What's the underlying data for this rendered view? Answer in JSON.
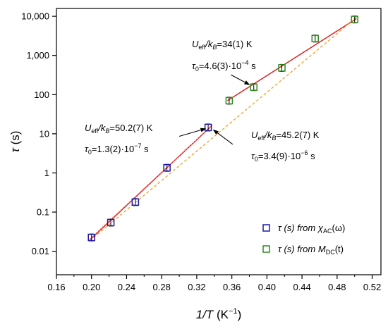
{
  "chart_data": {
    "type": "scatter",
    "title": "",
    "xlabel_main": "1/T",
    "xlabel_unit": " (K",
    "xlabel_sup": "−1",
    "xlabel_close": ")",
    "ylabel_main": "τ",
    "ylabel_unit": " (s)",
    "xlim": [
      0.16,
      0.53
    ],
    "ylim_log10": [
      -2.6,
      4.2
    ],
    "y_scale": "log",
    "x_ticks": [
      0.16,
      0.2,
      0.24,
      0.28,
      0.32,
      0.36,
      0.4,
      0.44,
      0.48,
      0.52
    ],
    "x_tick_labels": [
      "0.16",
      "0.20",
      "0.24",
      "0.28",
      "0.32",
      "0.36",
      "0.40",
      "0.44",
      "0.48",
      "0.52"
    ],
    "y_ticks": [
      0.01,
      0.1,
      1,
      10,
      100,
      1000,
      10000
    ],
    "y_tick_labels": [
      "0.01",
      "0.1",
      "1",
      "10",
      "100",
      "1,000",
      "10,000"
    ],
    "legend_position": "bottom-right",
    "series": [
      {
        "name_prefix": "τ (s) from ",
        "name_sym": "χ",
        "name_sub": "AC",
        "name_suffix": "(ω)",
        "color": "#1a1aa8",
        "points": [
          {
            "x": 0.2,
            "y": 0.0225
          },
          {
            "x": 0.222,
            "y": 0.054
          },
          {
            "x": 0.25,
            "y": 0.18
          },
          {
            "x": 0.286,
            "y": 1.35
          },
          {
            "x": 0.333,
            "y": 14.5
          }
        ]
      },
      {
        "name_prefix": "τ (s) from ",
        "name_sym": "M",
        "name_sub": "DC",
        "name_suffix": "(t)",
        "color": "#2e8b20",
        "points": [
          {
            "x": 0.357,
            "y": 70
          },
          {
            "x": 0.385,
            "y": 155
          },
          {
            "x": 0.417,
            "y": 480
          },
          {
            "x": 0.455,
            "y": 2700
          },
          {
            "x": 0.5,
            "y": 8300
          }
        ]
      }
    ],
    "fits": [
      {
        "style": "solid",
        "color": "#e02020",
        "x": [
          0.198,
          0.337
        ],
        "y": [
          0.0195,
          16
        ]
      },
      {
        "style": "solid",
        "color": "#e02020",
        "x": [
          0.355,
          0.502
        ],
        "y": [
          70,
          8700
        ]
      },
      {
        "style": "dash",
        "color": "#f0a020",
        "x": [
          0.198,
          0.503
        ],
        "y": [
          0.0185,
          9800
        ]
      },
      {
        "style": "dot",
        "color": "#f5a0a0",
        "x": [
          0.198,
          0.338
        ],
        "y": [
          0.021,
          17
        ]
      }
    ],
    "annotations": [
      {
        "id": "ann1",
        "u": "U",
        "u_sub": "eff",
        "k": "/k",
        "k_sub": "B",
        "u_val": "=50.2(7) K",
        "t": "τ",
        "t_sub": "0",
        "t_val": "=1.3(2)·10",
        "t_exp": "−7",
        "t_unit": " s",
        "arrow_from": {
          "x": 0.3,
          "y": 8.6
        },
        "arrow_to": {
          "x": 0.33,
          "y": 13.5
        }
      },
      {
        "id": "ann2",
        "u": "U",
        "u_sub": "eff",
        "k": "/k",
        "k_sub": "B",
        "u_val": "=34(1) K",
        "t": "τ",
        "t_sub": "0",
        "t_val": "=4.6(3)·10",
        "t_exp": "−4",
        "t_unit": " s",
        "arrow_from": {
          "x": 0.359,
          "y": 320
        },
        "arrow_to": {
          "x": 0.38,
          "y": 180
        }
      },
      {
        "id": "ann3",
        "u": "U",
        "u_sub": "eff",
        "k": "/k",
        "k_sub": "B",
        "u_val": "=45.2(7) K",
        "t": "τ",
        "t_sub": "0",
        "t_val": "=3.4(9)·10",
        "t_exp": "−6",
        "t_unit": " s",
        "arrow_from": {
          "x": 0.361,
          "y": 5.4
        },
        "arrow_to": {
          "x": 0.339,
          "y": 12.5
        }
      }
    ]
  }
}
